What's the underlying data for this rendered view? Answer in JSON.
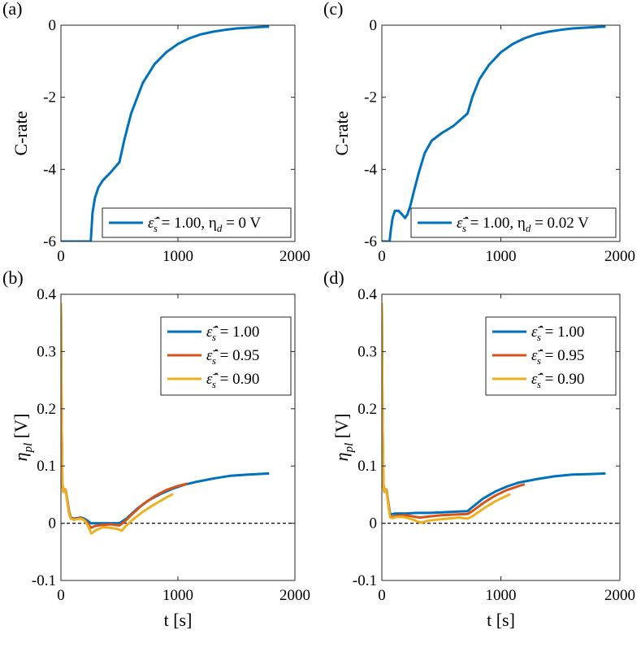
{
  "colors": {
    "blue": "#0072BD",
    "red": "#D95319",
    "yellow": "#EDB120",
    "axis": "#262626",
    "zero_line": "#000000"
  },
  "chart_data": [
    {
      "id": "a",
      "panel_label": "(a)",
      "type": "line",
      "xlabel": "",
      "ylabel": "C-rate",
      "xlim": [
        0,
        2000
      ],
      "ylim": [
        -6,
        0
      ],
      "xticks": [
        0,
        1000,
        2000
      ],
      "yticks": [
        -6,
        -4,
        -2,
        0
      ],
      "legend": {
        "position": "bottom-right",
        "entries": [
          {
            "tex": "ε̂",
            "sup": "−",
            "sub": "s",
            "text": " = 1.00, η",
            "sub2": "d",
            "text2": " = 0 V"
          }
        ]
      },
      "series": [
        {
          "name": "ε̂s− = 1.00, ηd = 0 V",
          "color_key": "blue",
          "points": [
            [
              0,
              -6
            ],
            [
              255,
              -6
            ],
            [
              270,
              -5.2
            ],
            [
              290,
              -4.8
            ],
            [
              320,
              -4.5
            ],
            [
              360,
              -4.3
            ],
            [
              420,
              -4.1
            ],
            [
              500,
              -3.8
            ],
            [
              540,
              -3.2
            ],
            [
              600,
              -2.45
            ],
            [
              700,
              -1.6
            ],
            [
              800,
              -1.08
            ],
            [
              900,
              -0.75
            ],
            [
              1000,
              -0.52
            ],
            [
              1100,
              -0.36
            ],
            [
              1200,
              -0.25
            ],
            [
              1300,
              -0.18
            ],
            [
              1400,
              -0.13
            ],
            [
              1500,
              -0.09
            ],
            [
              1600,
              -0.07
            ],
            [
              1700,
              -0.05
            ],
            [
              1780,
              -0.04
            ]
          ]
        }
      ]
    },
    {
      "id": "c",
      "panel_label": "(c)",
      "type": "line",
      "xlabel": "",
      "ylabel": "C-rate",
      "xlim": [
        0,
        2000
      ],
      "ylim": [
        -6,
        0
      ],
      "xticks": [
        0,
        1000,
        2000
      ],
      "yticks": [
        -6,
        -4,
        -2,
        0
      ],
      "legend": {
        "position": "bottom-right",
        "entries": [
          {
            "tex": "ε̂",
            "sup": "−",
            "sub": "s",
            "text": " = 1.00, η",
            "sub2": "d",
            "text2": " = 0.02 V"
          }
        ]
      },
      "series": [
        {
          "name": "ε̂s− = 1.00, ηd = 0.02 V",
          "color_key": "blue",
          "points": [
            [
              0,
              -6
            ],
            [
              65,
              -6
            ],
            [
              75,
              -5.7
            ],
            [
              90,
              -5.35
            ],
            [
              110,
              -5.15
            ],
            [
              140,
              -5.15
            ],
            [
              170,
              -5.25
            ],
            [
              195,
              -5.35
            ],
            [
              215,
              -5.25
            ],
            [
              240,
              -5.0
            ],
            [
              270,
              -4.6
            ],
            [
              310,
              -4.1
            ],
            [
              360,
              -3.55
            ],
            [
              420,
              -3.2
            ],
            [
              500,
              -3.0
            ],
            [
              600,
              -2.8
            ],
            [
              720,
              -2.45
            ],
            [
              760,
              -2.0
            ],
            [
              820,
              -1.5
            ],
            [
              900,
              -1.1
            ],
            [
              1000,
              -0.75
            ],
            [
              1100,
              -0.52
            ],
            [
              1200,
              -0.36
            ],
            [
              1300,
              -0.25
            ],
            [
              1400,
              -0.18
            ],
            [
              1500,
              -0.13
            ],
            [
              1600,
              -0.09
            ],
            [
              1700,
              -0.07
            ],
            [
              1800,
              -0.05
            ],
            [
              1880,
              -0.04
            ]
          ]
        }
      ]
    },
    {
      "id": "b",
      "panel_label": "(b)",
      "type": "line",
      "xlabel": "t [s]",
      "ylabel": "η_pl [V]",
      "xlim": [
        0,
        2000
      ],
      "ylim": [
        -0.1,
        0.4
      ],
      "xticks": [
        0,
        1000,
        2000
      ],
      "yticks": [
        -0.1,
        0,
        0.1,
        0.2,
        0.3,
        0.4
      ],
      "ytick_labels": [
        "-0.1",
        "0",
        "0.1",
        "0.2",
        "0.3",
        "0.4"
      ],
      "hline": 0,
      "legend": {
        "position": "top-right",
        "entries": [
          {
            "tex": "ε̂",
            "sup": "−",
            "sub": "s",
            "text": " = 1.00"
          },
          {
            "tex": "ε̂",
            "sup": "−",
            "sub": "s",
            "text": " = 0.95"
          },
          {
            "tex": "ε̂",
            "sup": "−",
            "sub": "s",
            "text": " = 0.90"
          }
        ]
      },
      "series": [
        {
          "name": "ε̂s− = 1.00",
          "color_key": "blue",
          "points": [
            [
              0,
              0.385
            ],
            [
              5,
              0.2
            ],
            [
              12,
              0.07
            ],
            [
              20,
              0.055
            ],
            [
              30,
              0.06
            ],
            [
              40,
              0.058
            ],
            [
              55,
              0.04
            ],
            [
              70,
              0.02
            ],
            [
              85,
              0.01
            ],
            [
              110,
              0.008
            ],
            [
              140,
              0.009
            ],
            [
              170,
              0.01
            ],
            [
              200,
              0.008
            ],
            [
              230,
              0.004
            ],
            [
              255,
              0.0
            ],
            [
              300,
              0.0
            ],
            [
              400,
              0.0
            ],
            [
              500,
              0.0
            ],
            [
              560,
              0.008
            ],
            [
              650,
              0.025
            ],
            [
              750,
              0.04
            ],
            [
              850,
              0.051
            ],
            [
              950,
              0.06
            ],
            [
              1050,
              0.067
            ],
            [
              1150,
              0.072
            ],
            [
              1300,
              0.078
            ],
            [
              1450,
              0.083
            ],
            [
              1600,
              0.085
            ],
            [
              1780,
              0.087
            ]
          ]
        },
        {
          "name": "ε̂s− = 0.95",
          "color_key": "red",
          "points": [
            [
              0,
              0.385
            ],
            [
              5,
              0.2
            ],
            [
              12,
              0.07
            ],
            [
              20,
              0.055
            ],
            [
              30,
              0.06
            ],
            [
              40,
              0.058
            ],
            [
              55,
              0.038
            ],
            [
              70,
              0.018
            ],
            [
              85,
              0.009
            ],
            [
              110,
              0.007
            ],
            [
              140,
              0.008
            ],
            [
              170,
              0.009
            ],
            [
              200,
              0.006
            ],
            [
              230,
              0.0
            ],
            [
              255,
              -0.008
            ],
            [
              290,
              -0.005
            ],
            [
              350,
              -0.003
            ],
            [
              430,
              -0.002
            ],
            [
              500,
              -0.004
            ],
            [
              540,
              0.002
            ],
            [
              600,
              0.014
            ],
            [
              700,
              0.033
            ],
            [
              800,
              0.047
            ],
            [
              900,
              0.058
            ],
            [
              1000,
              0.065
            ],
            [
              1080,
              0.069
            ]
          ]
        },
        {
          "name": "ε̂s− = 0.90",
          "color_key": "yellow",
          "points": [
            [
              0,
              0.385
            ],
            [
              5,
              0.2
            ],
            [
              12,
              0.07
            ],
            [
              20,
              0.055
            ],
            [
              30,
              0.06
            ],
            [
              40,
              0.057
            ],
            [
              55,
              0.036
            ],
            [
              70,
              0.016
            ],
            [
              85,
              0.008
            ],
            [
              110,
              0.006
            ],
            [
              140,
              0.007
            ],
            [
              170,
              0.008
            ],
            [
              200,
              0.005
            ],
            [
              230,
              -0.004
            ],
            [
              260,
              -0.018
            ],
            [
              300,
              -0.012
            ],
            [
              360,
              -0.007
            ],
            [
              420,
              -0.008
            ],
            [
              480,
              -0.01
            ],
            [
              520,
              -0.013
            ],
            [
              540,
              -0.008
            ],
            [
              600,
              0.004
            ],
            [
              700,
              0.02
            ],
            [
              800,
              0.033
            ],
            [
              900,
              0.045
            ],
            [
              960,
              0.051
            ]
          ]
        }
      ]
    },
    {
      "id": "d",
      "panel_label": "(d)",
      "type": "line",
      "xlabel": "t [s]",
      "ylabel": "η_pl [V]",
      "xlim": [
        0,
        2000
      ],
      "ylim": [
        -0.1,
        0.4
      ],
      "xticks": [
        0,
        1000,
        2000
      ],
      "yticks": [
        -0.1,
        0,
        0.1,
        0.2,
        0.3,
        0.4
      ],
      "ytick_labels": [
        "-0.1",
        "0",
        "0.1",
        "0.2",
        "0.3",
        "0.4"
      ],
      "hline": 0,
      "legend": {
        "position": "top-right",
        "entries": [
          {
            "tex": "ε̂",
            "sup": "−",
            "sub": "s",
            "text": " = 1.00"
          },
          {
            "tex": "ε̂",
            "sup": "−",
            "sub": "s",
            "text": " = 0.95"
          },
          {
            "tex": "ε̂",
            "sup": "−",
            "sub": "s",
            "text": " = 0.90"
          }
        ]
      },
      "series": [
        {
          "name": "ε̂s− = 1.00",
          "color_key": "blue",
          "points": [
            [
              0,
              0.385
            ],
            [
              5,
              0.2
            ],
            [
              12,
              0.07
            ],
            [
              20,
              0.055
            ],
            [
              30,
              0.06
            ],
            [
              40,
              0.058
            ],
            [
              55,
              0.035
            ],
            [
              70,
              0.015
            ],
            [
              85,
              0.016
            ],
            [
              120,
              0.017
            ],
            [
              200,
              0.017
            ],
            [
              300,
              0.018
            ],
            [
              400,
              0.018
            ],
            [
              500,
              0.019
            ],
            [
              600,
              0.02
            ],
            [
              720,
              0.021
            ],
            [
              760,
              0.028
            ],
            [
              850,
              0.043
            ],
            [
              950,
              0.055
            ],
            [
              1050,
              0.064
            ],
            [
              1150,
              0.071
            ],
            [
              1300,
              0.077
            ],
            [
              1450,
              0.082
            ],
            [
              1600,
              0.085
            ],
            [
              1750,
              0.086
            ],
            [
              1880,
              0.087
            ]
          ]
        },
        {
          "name": "ε̂s− = 0.95",
          "color_key": "red",
          "points": [
            [
              0,
              0.385
            ],
            [
              5,
              0.2
            ],
            [
              12,
              0.07
            ],
            [
              20,
              0.055
            ],
            [
              30,
              0.06
            ],
            [
              40,
              0.057
            ],
            [
              55,
              0.033
            ],
            [
              70,
              0.012
            ],
            [
              90,
              0.011
            ],
            [
              120,
              0.013
            ],
            [
              200,
              0.014
            ],
            [
              260,
              0.012
            ],
            [
              320,
              0.01
            ],
            [
              400,
              0.012
            ],
            [
              500,
              0.014
            ],
            [
              600,
              0.015
            ],
            [
              720,
              0.016
            ],
            [
              760,
              0.021
            ],
            [
              850,
              0.035
            ],
            [
              950,
              0.048
            ],
            [
              1050,
              0.058
            ],
            [
              1150,
              0.065
            ],
            [
              1200,
              0.068
            ]
          ]
        },
        {
          "name": "ε̂s− = 0.90",
          "color_key": "yellow",
          "points": [
            [
              0,
              0.385
            ],
            [
              5,
              0.2
            ],
            [
              12,
              0.07
            ],
            [
              20,
              0.055
            ],
            [
              30,
              0.06
            ],
            [
              40,
              0.056
            ],
            [
              55,
              0.03
            ],
            [
              70,
              0.01
            ],
            [
              90,
              0.009
            ],
            [
              120,
              0.011
            ],
            [
              180,
              0.011
            ],
            [
              240,
              0.008
            ],
            [
              300,
              0.003
            ],
            [
              330,
              0.001
            ],
            [
              380,
              0.004
            ],
            [
              450,
              0.006
            ],
            [
              550,
              0.008
            ],
            [
              650,
              0.01
            ],
            [
              720,
              0.008
            ],
            [
              760,
              0.012
            ],
            [
              850,
              0.025
            ],
            [
              950,
              0.038
            ],
            [
              1030,
              0.046
            ],
            [
              1080,
              0.051
            ]
          ]
        }
      ]
    }
  ]
}
